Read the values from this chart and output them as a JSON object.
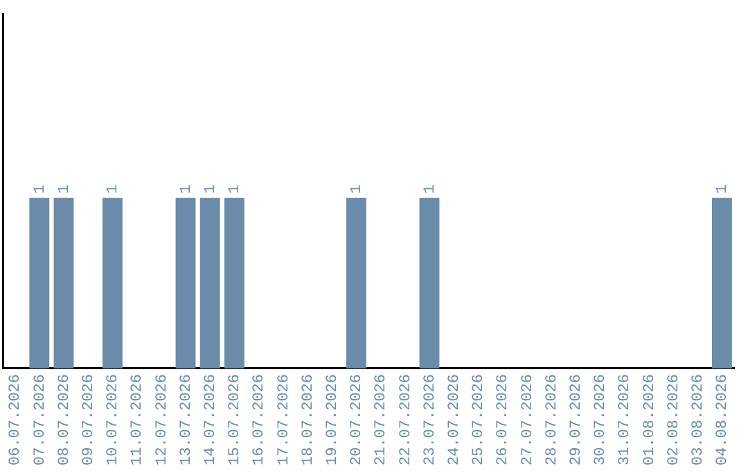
{
  "chart_data": {
    "type": "bar",
    "categories": [
      "06.07.2026",
      "07.07.2026",
      "08.07.2026",
      "09.07.2026",
      "10.07.2026",
      "11.07.2026",
      "12.07.2026",
      "13.07.2026",
      "14.07.2026",
      "15.07.2026",
      "16.07.2026",
      "17.07.2026",
      "18.07.2026",
      "19.07.2026",
      "20.07.2026",
      "21.07.2026",
      "22.07.2026",
      "23.07.2026",
      "24.07.2026",
      "25.07.2026",
      "26.07.2026",
      "27.07.2026",
      "28.07.2026",
      "29.07.2026",
      "30.07.2026",
      "31.07.2026",
      "01.08.2026",
      "02.08.2026",
      "03.08.2026",
      "04.08.2026"
    ],
    "values": [
      null,
      1,
      1,
      null,
      1,
      null,
      null,
      1,
      1,
      1,
      null,
      null,
      null,
      null,
      1,
      null,
      null,
      1,
      null,
      null,
      null,
      null,
      null,
      null,
      null,
      null,
      null,
      null,
      null,
      1
    ],
    "color": "#6a8caa",
    "ylim": [
      0,
      2.08
    ],
    "tick_labels": "x",
    "data_labels": true,
    "grid": false,
    "legend": false
  }
}
